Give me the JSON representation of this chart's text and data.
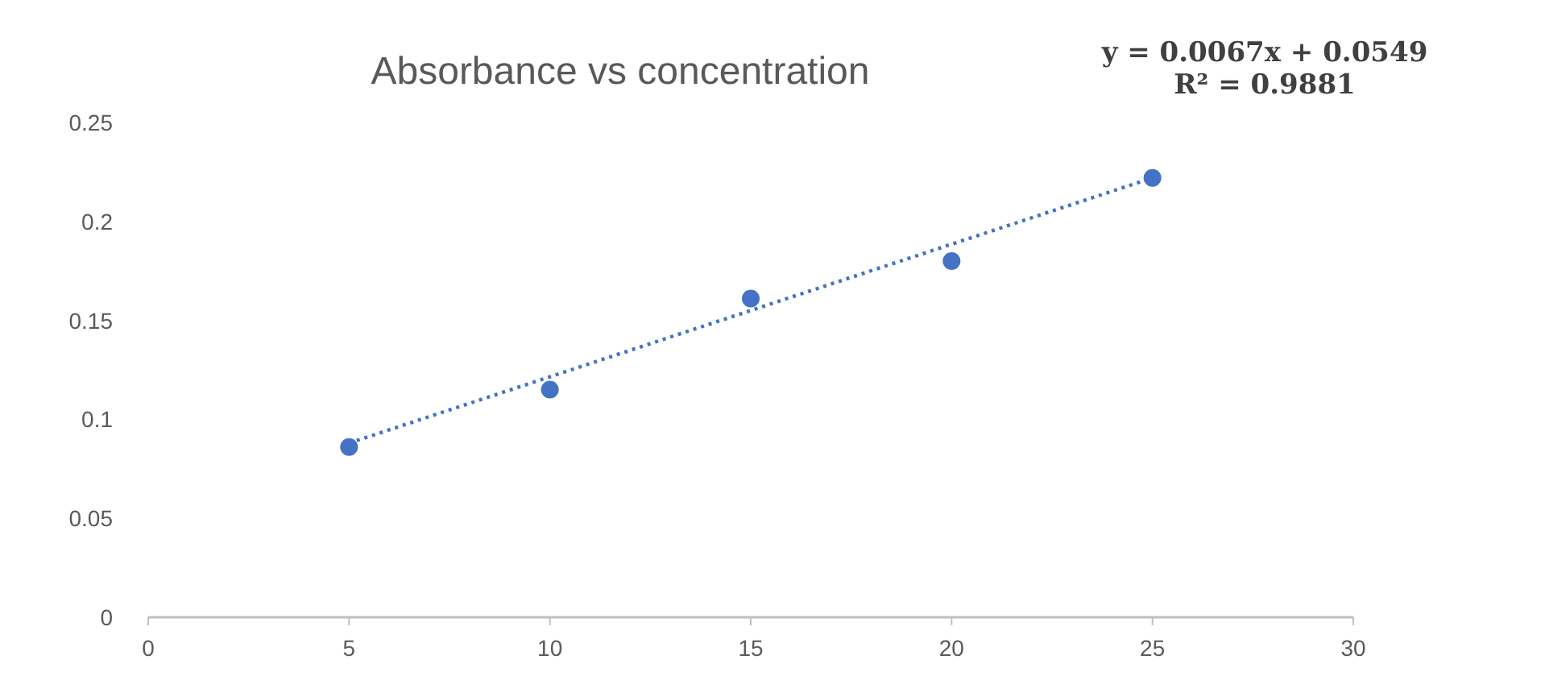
{
  "chart_data": {
    "type": "scatter",
    "title": "Absorbance vs concentration",
    "xlim": [
      0,
      30
    ],
    "xticks": [
      0,
      5,
      10,
      15,
      20,
      25,
      30
    ],
    "ylim": [
      0,
      0.25
    ],
    "yticks": [
      0,
      0.05,
      0.1,
      0.15,
      0.2,
      0.25
    ],
    "grid": false,
    "series": [
      {
        "color": "#4472c4",
        "marker": "circle",
        "x": [
          5,
          10,
          15,
          20,
          25
        ],
        "values": [
          0.086,
          0.115,
          0.161,
          0.18,
          0.222
        ]
      },
      {
        "type": "line",
        "color": "#4472c4",
        "line_style": "dotted",
        "x": [
          5,
          25
        ],
        "values": [
          0.088,
          0.222
        ]
      }
    ],
    "annotations": [
      "y = 0.0067x + 0.0549",
      "R² = 0.9881"
    ]
  }
}
